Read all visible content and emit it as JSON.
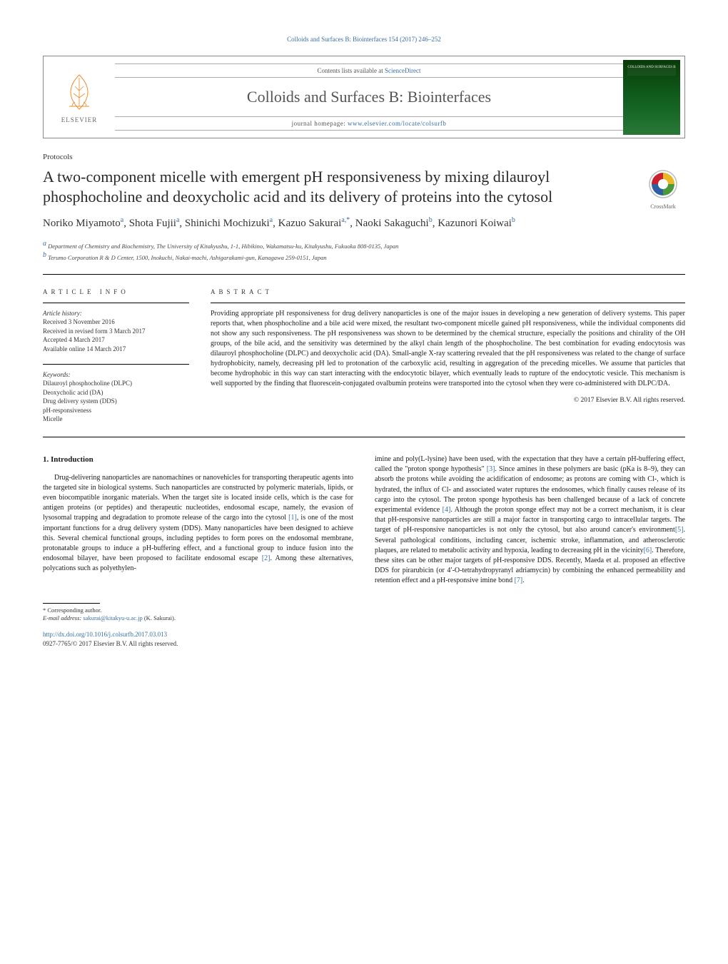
{
  "header": {
    "top_link": "Colloids and Surfaces B: Biointerfaces 154 (2017) 246–252",
    "contents_prefix": "Contents lists available at ",
    "contents_link": "ScienceDirect",
    "journal_name": "Colloids and Surfaces B: Biointerfaces",
    "homepage_prefix": "journal homepage: ",
    "homepage_url": "www.elsevier.com/locate/colsurfb",
    "elsevier": "ELSEVIER",
    "cover_label": "COLLOIDS AND SURFACES B"
  },
  "article": {
    "type": "Protocols",
    "title": "A two-component micelle with emergent pH responsiveness by mixing dilauroyl phosphocholine and deoxycholic acid and its delivery of proteins into the cytosol",
    "crossmark": "CrossMark",
    "authors_html": "Noriko Miyamoto<sup>a</sup>, Shota Fujii<sup>a</sup>, Shinichi Mochizuki<sup>a</sup>, Kazuo Sakurai<sup>a,*</sup>, Naoki Sakaguchi<sup>b</sup>, Kazunori Koiwai<sup>b</sup>",
    "affiliations": [
      {
        "sup": "a",
        "text": "Department of Chemistry and Biochemistry, The University of Kitakyushu, 1-1, Hibikino, Wakamatsu-ku, Kitakyushu, Fukuoka 808-0135, Japan"
      },
      {
        "sup": "b",
        "text": "Terumo Corporation R & D Center, 1500, Inokuchi, Nakai-machi, Ashigarakami-gun, Kanagawa 259-0151, Japan"
      }
    ]
  },
  "info": {
    "heading": "article info",
    "history_label": "Article history:",
    "history": [
      "Received 3 November 2016",
      "Received in revised form 3 March 2017",
      "Accepted 4 March 2017",
      "Available online 14 March 2017"
    ],
    "keywords_label": "Keywords:",
    "keywords": [
      "Dilauroyl phosphocholine (DLPC)",
      "Deoxycholic acid (DA)",
      "Drug delivery system (DDS)",
      "pH-responsiveness",
      "Micelle"
    ]
  },
  "abstract": {
    "heading": "abstract",
    "text": "Providing appropriate pH responsiveness for drug delivery nanoparticles is one of the major issues in developing a new generation of delivery systems. This paper reports that, when phosphocholine and a bile acid were mixed, the resultant two-component micelle gained pH responsiveness, while the individual components did not show any such responsiveness. The pH responsiveness was shown to be determined by the chemical structure, especially the positions and chirality of the OH groups, of the bile acid, and the sensitivity was determined by the alkyl chain length of the phosphocholine. The best combination for evading endocytosis was dilauroyl phosphocholine (DLPC) and deoxycholic acid (DA). Small-angle X-ray scattering revealed that the pH responsiveness was related to the change of surface hydrophobicity, namely, decreasing pH led to protonation of the carboxylic acid, resulting in aggregation of the preceding micelles. We assume that particles that become hydrophobic in this way can start interacting with the endocytotic bilayer, which eventually leads to rupture of the endocytotic vesicle. This mechanism is well supported by the finding that fluorescein-conjugated ovalbumin proteins were transported into the cytosol when they were co-administered with DLPC/DA.",
    "copyright": "© 2017 Elsevier B.V. All rights reserved."
  },
  "body": {
    "heading": "1. Introduction",
    "col1": "Drug-delivering nanoparticles are nanomachines or nanovehicles for transporting therapeutic agents into the targeted site in biological systems. Such nanoparticles are constructed by polymeric materials, lipids, or even biocompatible inorganic materials. When the target site is located inside cells, which is the case for antigen proteins (or peptides) and therapeutic nucleotides, endosomal escape, namely, the evasion of lysosomal trapping and degradation to promote release of the cargo into the cytosol <span class=\"cite\">[1]</span>, is one of the most important functions for a drug delivery system (DDS). Many nanoparticles have been designed to achieve this. Several chemical functional groups, including peptides to form pores on the endosomal membrane, protonatable groups to induce a pH-buffering effect, and a functional group to induce fusion into the endosomal bilayer, have been proposed to facilitate endosomal escape <span class=\"cite\">[2]</span>. Among these alternatives, polycations such as polyethylen-",
    "col2": "imine and poly(L-lysine) have been used, with the expectation that they have a certain pH-buffering effect, called the \"proton sponge hypothesis\" <span class=\"cite\">[3]</span>. Since amines in these polymers are basic (pKa is 8–9), they can absorb the protons while avoiding the acidification of endosome; as protons are coming with Cl-, which is hydrated, the influx of Cl- and associated water ruptures the endosomes, which finally causes release of its cargo into the cytosol. The proton sponge hypothesis has been challenged because of a lack of concrete experimental evidence <span class=\"cite\">[4]</span>. Although the proton sponge effect may not be a correct mechanism, it is clear that pH-responsive nanoparticles are still a major factor in transporting cargo to intracellular targets. The target of pH-responsive nanoparticles is not only the cytosol, but also around cancer's environment<span class=\"cite\">[5]</span>. Several pathological conditions, including cancer, ischemic stroke, inflammation, and atherosclerotic plaques, are related to metabolic activity and hypoxia, leading to decreasing pH in the vicinity<span class=\"cite\">[6]</span>. Therefore, these sites can be other major targets of pH-responsive DDS. Recently, Maeda et al. proposed an effective DDS for pirarubicin (or 4′-O-tetrahydropyranyl adriamycin) by combining the enhanced permeability and retention effect and a pH-responsive imine bond <span class=\"cite\">[7]</span>."
  },
  "footer": {
    "corresponding": "* Corresponding author.",
    "email_label": "E-mail address: ",
    "email": "sakurai@kitakyu-u.ac.jp",
    "email_suffix": " (K. Sakurai).",
    "doi": "http://dx.doi.org/10.1016/j.colsurfb.2017.03.013",
    "issn": "0927-7765/© 2017 Elsevier B.V. All rights reserved."
  },
  "colors": {
    "link": "#3a6ea5",
    "text": "#1a1a1a",
    "orange": "#e98b2c",
    "crossmark_red": "#c8202f",
    "crossmark_blue": "#2e5fa3",
    "crossmark_yellow": "#e8b828",
    "crossmark_green": "#4a9a3a"
  }
}
